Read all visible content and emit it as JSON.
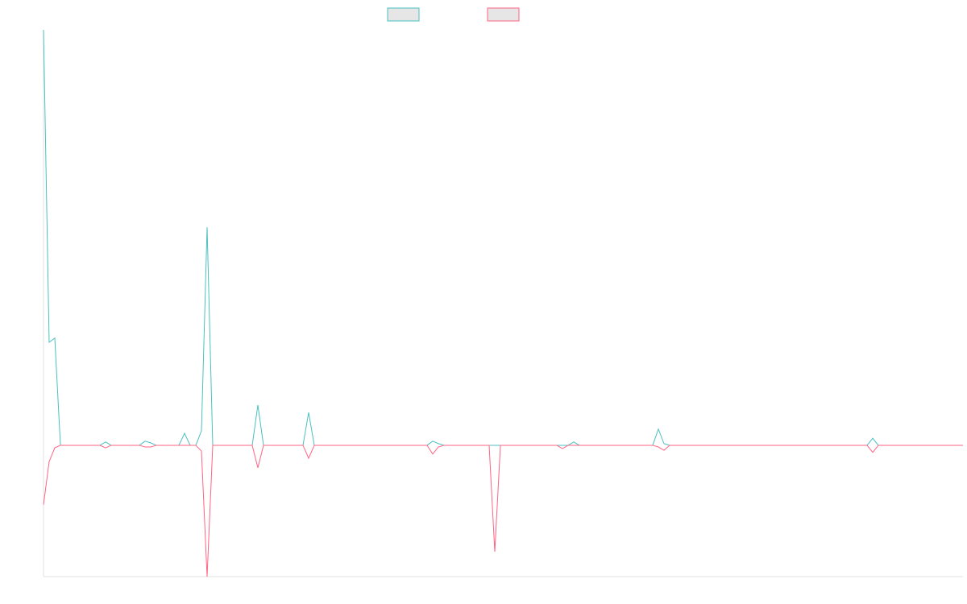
{
  "chart_data": {
    "type": "line",
    "xlim": [
      0,
      163
    ],
    "ylim": [
      -31.6,
      100
    ],
    "series": [
      {
        "color": "#4bc0c0",
        "x": [
          0,
          1,
          2,
          3,
          10,
          11,
          12,
          17,
          18,
          19,
          20,
          24,
          25,
          26,
          27,
          28,
          29,
          30,
          37,
          38,
          39,
          46,
          47,
          48,
          68,
          69,
          70,
          71,
          93,
          94,
          95,
          108,
          109,
          110,
          111,
          146,
          147,
          148,
          163
        ],
        "values": [
          100,
          24.8,
          25.8,
          0,
          0,
          0.8,
          0,
          0,
          1,
          0.6,
          0,
          0,
          2.9,
          0,
          0,
          3.5,
          52.5,
          0,
          0,
          9.7,
          0,
          0,
          7.9,
          0,
          0,
          1,
          0.4,
          0,
          0,
          0.8,
          0,
          0,
          3.9,
          0.4,
          0,
          0,
          1.7,
          0,
          0
        ]
      },
      {
        "color": "#ff6384",
        "x": [
          0,
          1,
          2,
          3,
          10,
          11,
          12,
          17,
          18,
          19,
          20,
          27,
          28,
          29,
          30,
          37,
          38,
          39,
          46,
          47,
          48,
          68,
          69,
          70,
          71,
          79,
          80,
          81,
          91,
          92,
          93,
          108,
          109,
          110,
          111,
          146,
          147,
          148,
          163
        ],
        "values": [
          -14.3,
          -3.9,
          -0.6,
          0,
          0,
          -0.6,
          0,
          0,
          -0.4,
          -0.4,
          0,
          0,
          -1.4,
          -31.6,
          0,
          0,
          -5.4,
          0,
          0,
          -3.1,
          0,
          0,
          -2.1,
          -0.4,
          0,
          0,
          -25.6,
          0,
          0,
          -0.8,
          0,
          0,
          -0.4,
          -1.2,
          0,
          0,
          -1.7,
          0,
          0
        ]
      }
    ]
  }
}
